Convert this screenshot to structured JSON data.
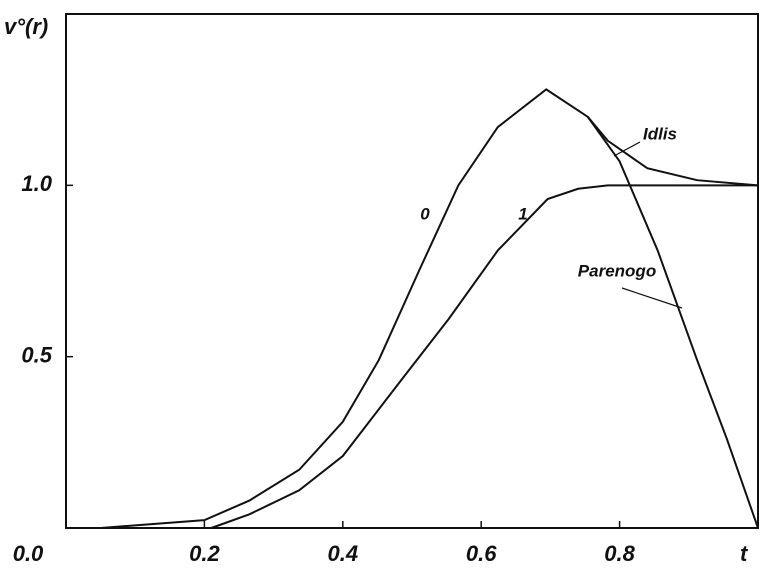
{
  "chart_data": {
    "type": "line",
    "ylabel": "v°(r)",
    "xlabel": "t",
    "xlim": [
      0,
      1
    ],
    "ylim": [
      0,
      1.5
    ],
    "xticks": [
      {
        "value": 0,
        "label": "0.0"
      },
      0.2,
      0.4,
      0.6,
      0.8
    ],
    "yticks": [
      0.5,
      {
        "value": 1,
        "label": "1.0"
      }
    ],
    "grid": false,
    "series": [
      {
        "name": "0",
        "color": "#111111",
        "x": [
          0.05,
          0.2,
          0.265,
          0.337,
          0.4,
          0.452,
          0.51,
          0.567,
          0.624,
          0.694,
          0.754,
          0.8,
          0.855,
          0.912,
          0.955,
          1.0
        ],
        "values": [
          0,
          0.023,
          0.08,
          0.17,
          0.31,
          0.49,
          0.75,
          1.0,
          1.17,
          1.28,
          1.2,
          1.07,
          0.81,
          0.49,
          0.26,
          0
        ]
      },
      {
        "name": "1",
        "color": "#111111",
        "x": [
          0.21,
          0.265,
          0.337,
          0.4,
          0.48,
          0.553,
          0.624,
          0.696,
          0.74,
          0.783,
          1.0
        ],
        "values": [
          0,
          0.04,
          0.11,
          0.21,
          0.42,
          0.61,
          0.81,
          0.96,
          0.99,
          1.0,
          1.0
        ]
      },
      {
        "name": "Idlis",
        "color": "#111111",
        "x": [
          0.754,
          0.783,
          0.84,
          0.912,
          1.0
        ],
        "values": [
          1.2,
          1.13,
          1.05,
          1.015,
          1.0
        ]
      }
    ],
    "annotations": [
      "Parenogo"
    ]
  }
}
